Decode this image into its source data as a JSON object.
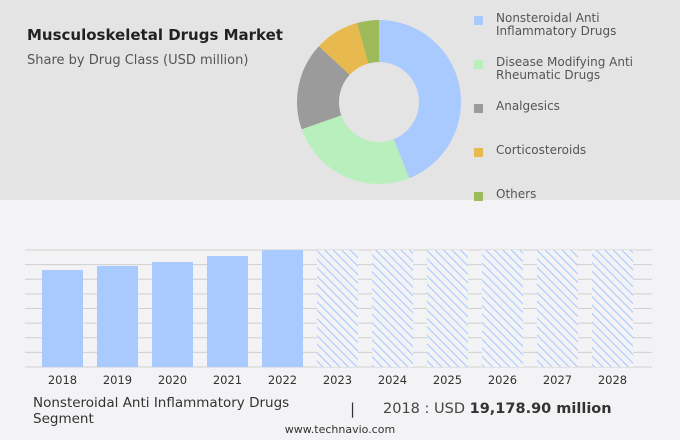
{
  "header": {
    "title": "Musculoskeletal Drugs Market",
    "subtitle": "Share by Drug Class (USD million)"
  },
  "chart_data": [
    {
      "type": "pie",
      "donut": true,
      "categories": [
        "Nonsteroidal Anti Inflammatory Drugs",
        "Disease Modifying Anti Rheumatic Drugs",
        "Analgesics",
        "Corticosteroids",
        "Others"
      ],
      "values": [
        44,
        25.6,
        17.3,
        8.8,
        4.3
      ],
      "colors": [
        "#a9caff",
        "#b8efbd",
        "#9b9b9b",
        "#e8b94e",
        "#9dbb5a"
      ],
      "legend": "right"
    },
    {
      "type": "bar",
      "categories": [
        "2018",
        "2019",
        "2020",
        "2021",
        "2022",
        "2023",
        "2024",
        "2025",
        "2026",
        "2027",
        "2028"
      ],
      "values": [
        19178.9,
        19970,
        20760,
        21945,
        23130,
        null,
        null,
        null,
        null,
        null,
        null
      ],
      "forecast_hatched": [
        "2023",
        "2024",
        "2025",
        "2026",
        "2027",
        "2028"
      ],
      "color": "#a9caff",
      "grid": true
    }
  ],
  "footer": {
    "segment": "Nonsteroidal Anti Inflammatory Drugs Segment",
    "separator": "|",
    "year_label": "2018 : USD ",
    "value": "19,178.90 million",
    "source": "www.technavio.com"
  }
}
